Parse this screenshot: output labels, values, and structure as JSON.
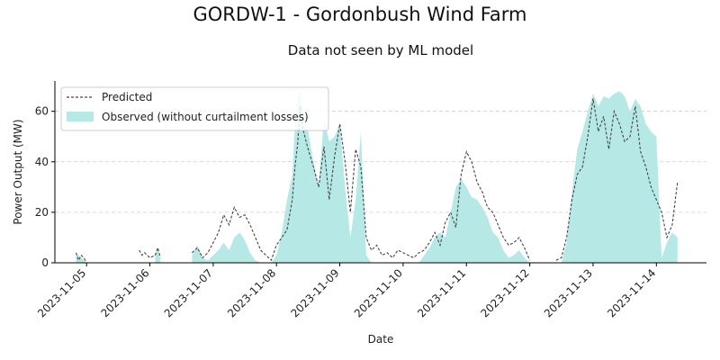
{
  "chart_data": {
    "type": "area",
    "title": "GORDW-1 - Gordonbush Wind Farm",
    "subtitle": "Data not seen by ML model",
    "xlabel": "Date",
    "ylabel": "Power Output (MW)",
    "ylim": [
      0,
      72
    ],
    "xlim": [
      "2023-11-04T12:00",
      "2023-11-14T19:00"
    ],
    "yticks": [
      0,
      20,
      40,
      60
    ],
    "xticks": [
      "2023-11-05",
      "2023-11-06",
      "2023-11-07",
      "2023-11-08",
      "2023-11-09",
      "2023-11-10",
      "2023-11-11",
      "2023-11-12",
      "2023-11-13",
      "2023-11-14"
    ],
    "grid": "y-dashed",
    "legend": "top-left",
    "colors": {
      "predicted": "#444444",
      "observed": "#b6e9e6"
    },
    "series": [
      {
        "name": "Predicted",
        "style": "dashed-line",
        "segments": [
          {
            "x": [
              "2023-11-04T20:00",
              "2023-11-04T21:00",
              "2023-11-04T22:00",
              "2023-11-04T23:00",
              "2023-11-05T00:00"
            ],
            "y": [
              4,
              1,
              3,
              2,
              0
            ]
          },
          {
            "x": [
              "2023-11-05T20:00",
              "2023-11-05T21:00",
              "2023-11-05T22:00",
              "2023-11-05T23:00",
              "2023-11-06T00:00",
              "2023-11-06T02:00",
              "2023-11-06T03:00",
              "2023-11-06T04:00"
            ],
            "y": [
              5,
              3,
              4,
              3,
              2,
              3,
              6,
              2
            ]
          },
          {
            "x": [
              "2023-11-06T16:00",
              "2023-11-06T18:00",
              "2023-11-06T20:00",
              "2023-11-06T22:00",
              "2023-11-07T00:00",
              "2023-11-07T02:00",
              "2023-11-07T04:00",
              "2023-11-07T06:00",
              "2023-11-07T08:00",
              "2023-11-07T10:00",
              "2023-11-07T12:00",
              "2023-11-07T14:00",
              "2023-11-07T16:00",
              "2023-11-07T18:00",
              "2023-11-07T20:00",
              "2023-11-07T22:00",
              "2023-11-08T00:00",
              "2023-11-08T02:00",
              "2023-11-08T04:00",
              "2023-11-08T06:00",
              "2023-11-08T07:00",
              "2023-11-08T08:00",
              "2023-11-08T09:00",
              "2023-11-08T10:00",
              "2023-11-08T12:00",
              "2023-11-08T14:00",
              "2023-11-08T16:00",
              "2023-11-08T18:00",
              "2023-11-08T20:00",
              "2023-11-08T22:00",
              "2023-11-09T00:00",
              "2023-11-09T02:00",
              "2023-11-09T04:00",
              "2023-11-09T06:00",
              "2023-11-09T08:00",
              "2023-11-09T10:00",
              "2023-11-09T12:00",
              "2023-11-09T14:00",
              "2023-11-09T16:00",
              "2023-11-09T18:00",
              "2023-11-09T20:00",
              "2023-11-09T22:00",
              "2023-11-10T00:00",
              "2023-11-10T02:00",
              "2023-11-10T04:00",
              "2023-11-10T06:00",
              "2023-11-10T08:00",
              "2023-11-10T10:00",
              "2023-11-10T12:00",
              "2023-11-10T14:00",
              "2023-11-10T16:00",
              "2023-11-10T18:00",
              "2023-11-10T20:00",
              "2023-11-10T22:00",
              "2023-11-11T00:00",
              "2023-11-11T02:00",
              "2023-11-11T04:00",
              "2023-11-11T06:00",
              "2023-11-11T08:00",
              "2023-11-11T10:00",
              "2023-11-11T12:00",
              "2023-11-11T14:00",
              "2023-11-11T16:00",
              "2023-11-11T18:00",
              "2023-11-11T20:00",
              "2023-11-11T22:00",
              "2023-11-12T00:00"
            ],
            "y": [
              4,
              6,
              2,
              4,
              8,
              12,
              19,
              15,
              22,
              18,
              19,
              15,
              10,
              5,
              3,
              1,
              7,
              10,
              13,
              25,
              38,
              47,
              62,
              53,
              45,
              38,
              30,
              46,
              25,
              42,
              55,
              40,
              20,
              45,
              38,
              10,
              5,
              7,
              3,
              4,
              2,
              5,
              4,
              3,
              2,
              4,
              5,
              8,
              12,
              7,
              16,
              20,
              14,
              35,
              44,
              40,
              32,
              28,
              22,
              20,
              15,
              10,
              7,
              8,
              10,
              6,
              1
            ]
          },
          {
            "x": [
              "2023-11-12T10:00",
              "2023-11-12T12:00",
              "2023-11-12T14:00",
              "2023-11-12T16:00",
              "2023-11-12T18:00",
              "2023-11-12T20:00",
              "2023-11-12T22:00",
              "2023-11-13T00:00",
              "2023-11-13T02:00",
              "2023-11-13T04:00",
              "2023-11-13T06:00",
              "2023-11-13T08:00",
              "2023-11-13T10:00",
              "2023-11-13T12:00",
              "2023-11-13T14:00",
              "2023-11-13T16:00",
              "2023-11-13T18:00",
              "2023-11-13T20:00",
              "2023-11-13T22:00",
              "2023-11-14T00:00",
              "2023-11-14T02:00",
              "2023-11-14T04:00",
              "2023-11-14T06:00",
              "2023-11-14T08:00"
            ],
            "y": [
              1,
              2,
              10,
              25,
              35,
              38,
              50,
              65,
              52,
              58,
              45,
              60,
              55,
              48,
              50,
              62,
              44,
              38,
              30,
              25,
              20,
              10,
              15,
              32
            ]
          }
        ]
      },
      {
        "name": "Observed (without curtailment losses)",
        "style": "filled-area",
        "segments": [
          {
            "x": [
              "2023-11-04T20:00",
              "2023-11-04T22:00",
              "2023-11-05T00:00"
            ],
            "y": [
              4,
              2,
              0
            ]
          },
          {
            "x": [
              "2023-11-06T02:00",
              "2023-11-06T03:00",
              "2023-11-06T04:00"
            ],
            "y": [
              3,
              6,
              1
            ]
          },
          {
            "x": [
              "2023-11-06T16:00",
              "2023-11-06T18:00",
              "2023-11-06T20:00",
              "2023-11-06T22:00",
              "2023-11-07T00:00",
              "2023-11-07T02:00",
              "2023-11-07T04:00",
              "2023-11-07T06:00",
              "2023-11-07T08:00",
              "2023-11-07T10:00",
              "2023-11-07T12:00",
              "2023-11-07T14:00",
              "2023-11-07T16:00",
              "2023-11-07T18:00",
              "2023-11-07T20:00",
              "2023-11-07T22:00",
              "2023-11-08T00:00",
              "2023-11-08T02:00",
              "2023-11-08T04:00",
              "2023-11-08T06:00",
              "2023-11-08T07:00",
              "2023-11-08T08:00",
              "2023-11-08T09:00",
              "2023-11-08T10:00",
              "2023-11-08T12:00",
              "2023-11-08T14:00",
              "2023-11-08T16:00",
              "2023-11-08T18:00",
              "2023-11-08T20:00",
              "2023-11-08T22:00",
              "2023-11-09T00:00",
              "2023-11-09T02:00",
              "2023-11-09T04:00",
              "2023-11-09T06:00",
              "2023-11-09T08:00",
              "2023-11-09T10:00",
              "2023-11-09T12:00",
              "2023-11-09T14:00",
              "2023-11-09T16:00",
              "2023-11-09T18:00",
              "2023-11-09T20:00",
              "2023-11-09T22:00",
              "2023-11-10T00:00",
              "2023-11-10T02:00",
              "2023-11-10T04:00",
              "2023-11-10T06:00",
              "2023-11-10T08:00",
              "2023-11-10T10:00",
              "2023-11-10T12:00",
              "2023-11-10T14:00",
              "2023-11-10T16:00",
              "2023-11-10T18:00",
              "2023-11-10T20:00",
              "2023-11-10T22:00",
              "2023-11-11T00:00",
              "2023-11-11T02:00",
              "2023-11-11T04:00",
              "2023-11-11T06:00",
              "2023-11-11T08:00",
              "2023-11-11T10:00",
              "2023-11-11T12:00",
              "2023-11-11T14:00",
              "2023-11-11T16:00",
              "2023-11-11T18:00",
              "2023-11-11T20:00",
              "2023-11-11T22:00",
              "2023-11-12T00:00"
            ],
            "y": [
              3,
              7,
              2,
              1,
              3,
              5,
              8,
              5,
              10,
              12,
              9,
              4,
              1,
              0,
              0,
              0,
              3,
              12,
              25,
              35,
              55,
              66,
              68,
              60,
              52,
              40,
              30,
              58,
              48,
              50,
              55,
              30,
              10,
              25,
              52,
              3,
              0,
              0,
              0,
              0,
              0,
              0,
              0,
              0,
              0,
              0,
              3,
              6,
              10,
              12,
              10,
              20,
              30,
              33,
              30,
              26,
              25,
              22,
              18,
              12,
              10,
              5,
              2,
              3,
              5,
              2,
              0
            ]
          },
          {
            "x": [
              "2023-11-12T10:00",
              "2023-11-12T12:00",
              "2023-11-12T14:00",
              "2023-11-12T16:00",
              "2023-11-12T18:00",
              "2023-11-12T20:00",
              "2023-11-12T22:00",
              "2023-11-13T00:00",
              "2023-11-13T02:00",
              "2023-11-13T04:00",
              "2023-11-13T06:00",
              "2023-11-13T08:00",
              "2023-11-13T10:00",
              "2023-11-13T12:00",
              "2023-11-13T14:00",
              "2023-11-13T16:00",
              "2023-11-13T18:00",
              "2023-11-13T20:00",
              "2023-11-13T22:00",
              "2023-11-14T00:00",
              "2023-11-14T02:00",
              "2023-11-14T04:00",
              "2023-11-14T06:00",
              "2023-11-14T08:00"
            ],
            "y": [
              0,
              0,
              8,
              28,
              45,
              52,
              60,
              67,
              62,
              66,
              65,
              67,
              68,
              66,
              60,
              65,
              62,
              55,
              52,
              50,
              2,
              8,
              12,
              10
            ]
          }
        ]
      }
    ]
  }
}
